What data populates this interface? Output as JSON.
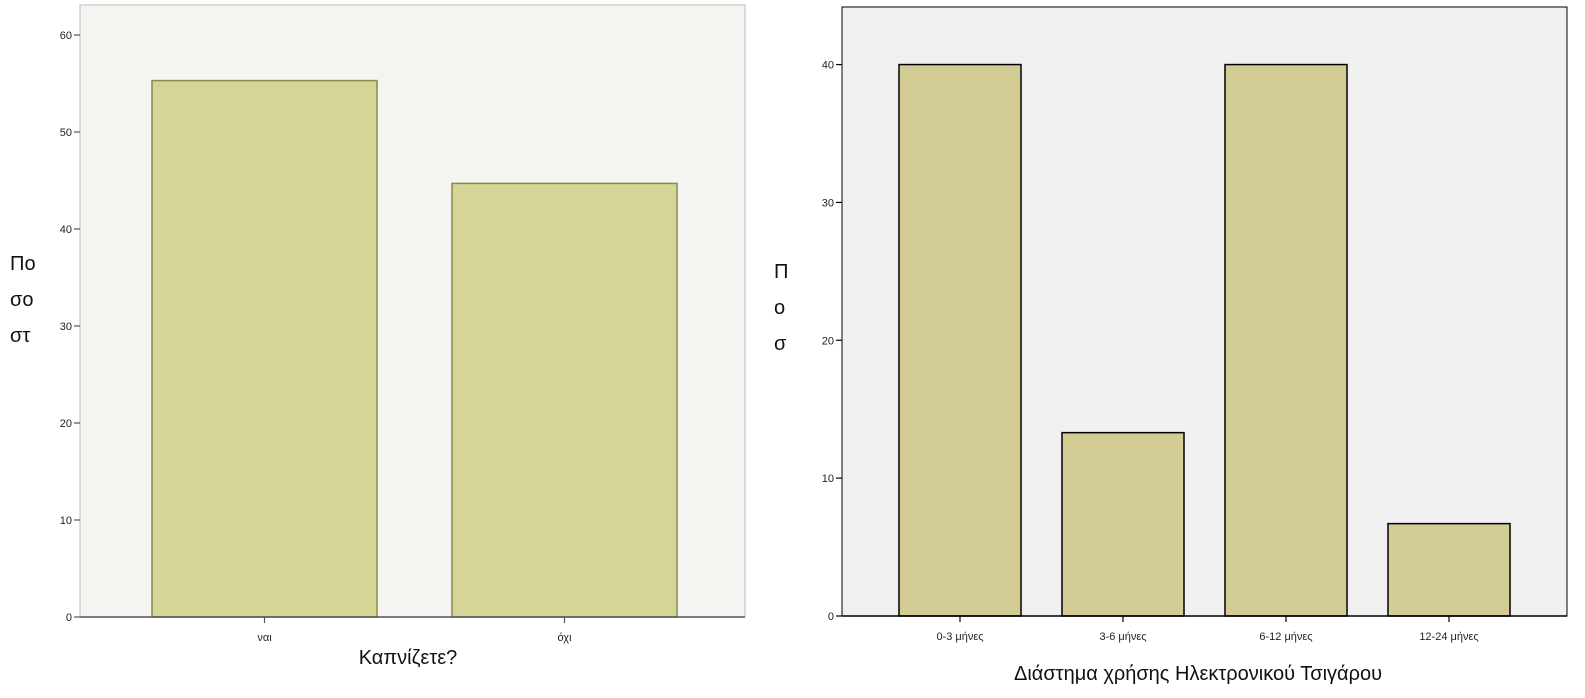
{
  "chart_data": [
    {
      "type": "bar",
      "categories": [
        "ναι",
        "όχι"
      ],
      "values": [
        55.3,
        44.7
      ],
      "title": "",
      "xlabel": "Καπνίζετε?",
      "ylabel": "Ποσοστό",
      "ylim": [
        0,
        60
      ],
      "yticks": [
        0,
        10,
        20,
        30,
        40,
        50,
        60
      ],
      "grid": false,
      "colors": {
        "bar": "#d4d596",
        "bar_edge": "#8a8a4a",
        "plot_bg": "#f4f4f0",
        "axis": "#555555"
      }
    },
    {
      "type": "bar",
      "categories": [
        "0-3 μήνες",
        "3-6 μήνες",
        "6-12 μήνες",
        "12-24 μήνες"
      ],
      "values": [
        40,
        13.3,
        40,
        6.7
      ],
      "title": "",
      "xlabel": "Διάστημα χρήσης Ηλεκτρονικού Τσιγάρου",
      "ylabel": "Ποσοστό",
      "ylim": [
        0,
        42
      ],
      "yticks": [
        0,
        10,
        20,
        30,
        40
      ],
      "grid": false,
      "colors": {
        "bar": "#d3cd95",
        "bar_edge": "#000000",
        "plot_bg": "#f0f0f0",
        "axis": "#000000"
      }
    }
  ]
}
